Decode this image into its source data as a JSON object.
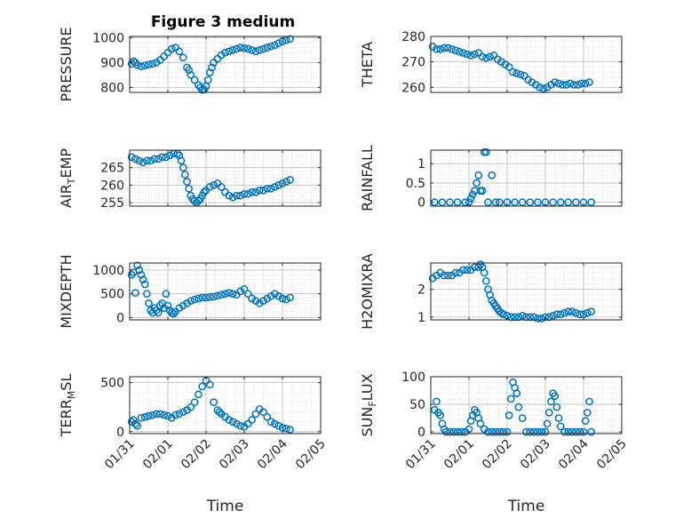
{
  "figure": {
    "title": "Figure 3 medium",
    "marker_color": "#0072BD",
    "grid": true
  },
  "chart_data": [
    {
      "type": "scatter",
      "title": "Figure 3 medium",
      "xlabel": "",
      "ylabel": "PRESSURE",
      "xlim": [
        0,
        5
      ],
      "ylim": [
        780,
        1005
      ],
      "yticks": [
        800,
        900,
        1000
      ],
      "ytick_labels": [
        "800",
        "900",
        "1000"
      ],
      "xticks": [
        0,
        1,
        2,
        3,
        4,
        5
      ],
      "xtick_labels": [],
      "x": [
        0.05,
        0.1,
        0.15,
        0.2,
        0.3,
        0.4,
        0.5,
        0.6,
        0.7,
        0.8,
        0.9,
        1.0,
        1.1,
        1.2,
        1.3,
        1.4,
        1.5,
        1.55,
        1.6,
        1.7,
        1.8,
        1.85,
        1.9,
        1.95,
        2.0,
        2.05,
        2.1,
        2.15,
        2.2,
        2.3,
        2.4,
        2.5,
        2.6,
        2.7,
        2.8,
        2.9,
        3.0,
        3.1,
        3.2,
        3.3,
        3.4,
        3.5,
        3.6,
        3.7,
        3.8,
        3.9,
        4.0,
        4.1,
        4.2
      ],
      "y": [
        895,
        905,
        900,
        890,
        885,
        888,
        892,
        895,
        900,
        910,
        925,
        940,
        955,
        960,
        945,
        920,
        880,
        870,
        850,
        830,
        810,
        800,
        790,
        792,
        805,
        830,
        860,
        880,
        900,
        915,
        930,
        940,
        945,
        950,
        955,
        960,
        958,
        955,
        950,
        945,
        950,
        955,
        960,
        965,
        970,
        978,
        985,
        990,
        995
      ]
    },
    {
      "type": "scatter",
      "xlabel": "",
      "ylabel": "THETA",
      "xlim": [
        0,
        5
      ],
      "ylim": [
        258,
        280
      ],
      "yticks": [
        260,
        270,
        280
      ],
      "ytick_labels": [
        "260",
        "270",
        "280"
      ],
      "xticks": [
        0,
        1,
        2,
        3,
        4,
        5
      ],
      "xtick_labels": [],
      "x": [
        0.05,
        0.15,
        0.25,
        0.35,
        0.45,
        0.55,
        0.65,
        0.75,
        0.85,
        0.95,
        1.05,
        1.15,
        1.25,
        1.35,
        1.45,
        1.55,
        1.65,
        1.75,
        1.85,
        1.95,
        2.05,
        2.15,
        2.25,
        2.35,
        2.45,
        2.55,
        2.65,
        2.75,
        2.85,
        2.95,
        3.05,
        3.15,
        3.25,
        3.35,
        3.45,
        3.55,
        3.65,
        3.75,
        3.85,
        3.95,
        4.05,
        4.15
      ],
      "y": [
        276,
        275,
        275,
        275.5,
        275.5,
        275,
        274.5,
        274,
        273.5,
        273,
        272.5,
        273,
        273.5,
        272,
        271.5,
        272,
        272.5,
        271,
        270,
        269,
        268,
        266,
        265.5,
        265,
        264.5,
        263,
        262,
        261,
        260,
        259.5,
        260,
        261,
        262,
        261.5,
        261,
        261,
        261.5,
        261,
        261,
        261.5,
        261.5,
        262
      ]
    },
    {
      "type": "scatter",
      "xlabel": "",
      "ylabel": "AIR_TEMP",
      "xlim": [
        0,
        5
      ],
      "ylim": [
        254,
        270
      ],
      "yticks": [
        255,
        260,
        265
      ],
      "ytick_labels": [
        "255",
        "260",
        "265"
      ],
      "xticks": [
        0,
        1,
        2,
        3,
        4,
        5
      ],
      "xtick_labels": [],
      "x": [
        0.05,
        0.15,
        0.25,
        0.35,
        0.45,
        0.55,
        0.65,
        0.75,
        0.85,
        0.95,
        1.05,
        1.15,
        1.25,
        1.3,
        1.35,
        1.4,
        1.45,
        1.5,
        1.55,
        1.6,
        1.65,
        1.7,
        1.75,
        1.8,
        1.85,
        1.9,
        1.95,
        2.0,
        2.1,
        2.2,
        2.3,
        2.4,
        2.5,
        2.6,
        2.7,
        2.8,
        2.9,
        3.0,
        3.1,
        3.2,
        3.3,
        3.4,
        3.5,
        3.6,
        3.7,
        3.8,
        3.9,
        4.0,
        4.1,
        4.2
      ],
      "y": [
        268,
        267.5,
        267,
        266.5,
        267,
        267,
        267.5,
        267.5,
        268,
        268,
        268.5,
        269,
        269,
        268.5,
        267,
        265,
        263,
        261,
        259,
        257,
        256,
        255.5,
        255,
        255.5,
        256,
        257,
        258,
        258.5,
        259.5,
        260,
        260.5,
        259.5,
        258,
        257,
        256.5,
        257,
        257,
        257.5,
        257.5,
        258,
        258,
        258.5,
        258.5,
        259,
        259,
        259.5,
        260,
        260.5,
        261,
        261.5
      ]
    },
    {
      "type": "scatter",
      "xlabel": "",
      "ylabel": "RAINFALL",
      "xlim": [
        0,
        5
      ],
      "ylim": [
        -0.1,
        1.35
      ],
      "yticks": [
        0,
        0.5,
        1
      ],
      "ytick_labels": [
        "0",
        "0.5",
        "1"
      ],
      "xticks": [
        0,
        1,
        2,
        3,
        4,
        5
      ],
      "xtick_labels": [],
      "x": [
        0.1,
        0.3,
        0.5,
        0.7,
        0.9,
        1.0,
        1.05,
        1.1,
        1.15,
        1.2,
        1.25,
        1.3,
        1.35,
        1.4,
        1.45,
        1.5,
        1.6,
        1.7,
        1.8,
        2.0,
        2.2,
        2.4,
        2.6,
        2.8,
        3.0,
        3.2,
        3.4,
        3.6,
        3.8,
        4.0,
        4.2
      ],
      "y": [
        0,
        0,
        0,
        0,
        0,
        0,
        0.1,
        0.2,
        0.3,
        0.5,
        0.7,
        0.3,
        0.3,
        1.3,
        1.3,
        0,
        0.7,
        0,
        0,
        0,
        0,
        0,
        0,
        0,
        0,
        0,
        0,
        0,
        0,
        0,
        0
      ]
    },
    {
      "type": "scatter",
      "xlabel": "",
      "ylabel": "MIXDEPTH",
      "xlim": [
        0,
        5
      ],
      "ylim": [
        -50,
        1150
      ],
      "yticks": [
        0,
        500,
        1000
      ],
      "ytick_labels": [
        "0",
        "500",
        "1000"
      ],
      "xticks": [
        0,
        1,
        2,
        3,
        4,
        5
      ],
      "xtick_labels": [],
      "x": [
        0.05,
        0.1,
        0.15,
        0.2,
        0.25,
        0.3,
        0.35,
        0.4,
        0.45,
        0.5,
        0.55,
        0.6,
        0.65,
        0.7,
        0.75,
        0.8,
        0.85,
        0.9,
        0.95,
        1.0,
        1.05,
        1.1,
        1.15,
        1.2,
        1.3,
        1.4,
        1.5,
        1.6,
        1.7,
        1.8,
        1.9,
        2.0,
        2.1,
        2.2,
        2.3,
        2.4,
        2.5,
        2.6,
        2.7,
        2.8,
        2.9,
        3.0,
        3.1,
        3.2,
        3.3,
        3.4,
        3.5,
        3.6,
        3.7,
        3.8,
        3.9,
        4.0,
        4.1,
        4.2
      ],
      "y": [
        900,
        950,
        520,
        1100,
        1000,
        900,
        800,
        700,
        500,
        300,
        150,
        100,
        200,
        150,
        100,
        250,
        300,
        200,
        500,
        250,
        150,
        100,
        80,
        120,
        200,
        250,
        300,
        350,
        380,
        400,
        420,
        420,
        430,
        440,
        460,
        480,
        500,
        520,
        500,
        480,
        550,
        600,
        500,
        400,
        350,
        300,
        350,
        400,
        450,
        500,
        450,
        400,
        380,
        420
      ]
    },
    {
      "type": "scatter",
      "xlabel": "",
      "ylabel": "H2OMIXRA",
      "xlim": [
        0,
        5
      ],
      "ylim": [
        0.9,
        2.95
      ],
      "yticks": [
        1,
        2
      ],
      "ytick_labels": [
        "1",
        "2"
      ],
      "xticks": [
        0,
        1,
        2,
        3,
        4,
        5
      ],
      "xtick_labels": [],
      "x": [
        0.05,
        0.15,
        0.25,
        0.35,
        0.45,
        0.55,
        0.65,
        0.75,
        0.85,
        0.95,
        1.05,
        1.15,
        1.25,
        1.3,
        1.35,
        1.4,
        1.45,
        1.5,
        1.55,
        1.6,
        1.65,
        1.7,
        1.75,
        1.8,
        1.85,
        1.9,
        2.0,
        2.1,
        2.2,
        2.3,
        2.4,
        2.5,
        2.6,
        2.7,
        2.8,
        2.9,
        3.0,
        3.1,
        3.2,
        3.3,
        3.4,
        3.5,
        3.6,
        3.7,
        3.8,
        3.9,
        4.0,
        4.1,
        4.2
      ],
      "y": [
        2.4,
        2.5,
        2.6,
        2.5,
        2.5,
        2.5,
        2.6,
        2.6,
        2.7,
        2.7,
        2.7,
        2.8,
        2.8,
        2.9,
        2.8,
        2.6,
        2.3,
        2.0,
        1.8,
        1.6,
        1.5,
        1.4,
        1.3,
        1.2,
        1.15,
        1.1,
        1.05,
        1.0,
        1.0,
        1.0,
        1.05,
        1.0,
        1.0,
        1.0,
        0.95,
        0.95,
        1.0,
        1.0,
        1.05,
        1.1,
        1.1,
        1.15,
        1.2,
        1.2,
        1.15,
        1.1,
        1.1,
        1.15,
        1.2
      ]
    },
    {
      "type": "scatter",
      "xlabel": "Time",
      "ylabel": "TERR_MSL",
      "xlim": [
        0,
        5
      ],
      "ylim": [
        -20,
        560
      ],
      "yticks": [
        0,
        500
      ],
      "ytick_labels": [
        "0",
        "500"
      ],
      "xticks": [
        0,
        1,
        2,
        3,
        4,
        5
      ],
      "xtick_labels": [
        "01/31",
        "02/01",
        "02/02",
        "02/03",
        "02/04",
        "02/05"
      ],
      "x": [
        0.05,
        0.1,
        0.15,
        0.2,
        0.3,
        0.4,
        0.5,
        0.6,
        0.7,
        0.8,
        0.9,
        1.0,
        1.1,
        1.2,
        1.3,
        1.4,
        1.5,
        1.6,
        1.7,
        1.8,
        1.9,
        2.0,
        2.1,
        2.2,
        2.3,
        2.35,
        2.4,
        2.5,
        2.6,
        2.7,
        2.8,
        2.9,
        3.0,
        3.1,
        3.2,
        3.3,
        3.4,
        3.5,
        3.6,
        3.7,
        3.8,
        3.9,
        4.0,
        4.1,
        4.2
      ],
      "y": [
        100,
        120,
        80,
        60,
        140,
        150,
        160,
        170,
        180,
        180,
        170,
        160,
        140,
        170,
        180,
        200,
        220,
        250,
        300,
        380,
        460,
        520,
        480,
        300,
        220,
        200,
        180,
        150,
        120,
        100,
        80,
        60,
        50,
        80,
        120,
        180,
        230,
        200,
        150,
        100,
        80,
        60,
        40,
        30,
        20
      ]
    },
    {
      "type": "scatter",
      "xlabel": "Time",
      "ylabel": "SUN_FLUX",
      "xlim": [
        0,
        5
      ],
      "ylim": [
        -3,
        100
      ],
      "yticks": [
        0,
        50,
        100
      ],
      "ytick_labels": [
        "0",
        "50",
        "100"
      ],
      "xticks": [
        0,
        1,
        2,
        3,
        4,
        5
      ],
      "xtick_labels": [
        "01/31",
        "02/01",
        "02/02",
        "02/03",
        "02/04",
        "02/05"
      ],
      "x": [
        0.1,
        0.15,
        0.2,
        0.25,
        0.3,
        0.35,
        0.4,
        0.5,
        0.6,
        0.7,
        0.8,
        0.9,
        1.0,
        1.05,
        1.1,
        1.15,
        1.2,
        1.25,
        1.3,
        1.4,
        1.5,
        1.6,
        1.7,
        1.8,
        1.9,
        2.0,
        2.05,
        2.1,
        2.15,
        2.2,
        2.25,
        2.3,
        2.4,
        2.5,
        2.6,
        2.7,
        2.8,
        2.9,
        3.0,
        3.05,
        3.1,
        3.15,
        3.2,
        3.25,
        3.3,
        3.35,
        3.4,
        3.5,
        3.6,
        3.7,
        3.8,
        3.9,
        4.0,
        4.05,
        4.1,
        4.15,
        4.2
      ],
      "y": [
        40,
        55,
        35,
        30,
        15,
        5,
        0,
        0,
        0,
        0,
        0,
        0,
        5,
        20,
        30,
        40,
        35,
        25,
        15,
        5,
        0,
        0,
        0,
        0,
        0,
        0,
        30,
        60,
        90,
        80,
        70,
        45,
        25,
        0,
        0,
        0,
        0,
        0,
        0,
        15,
        35,
        55,
        70,
        65,
        45,
        25,
        10,
        0,
        0,
        0,
        0,
        0,
        0,
        20,
        35,
        55,
        0
      ]
    }
  ]
}
